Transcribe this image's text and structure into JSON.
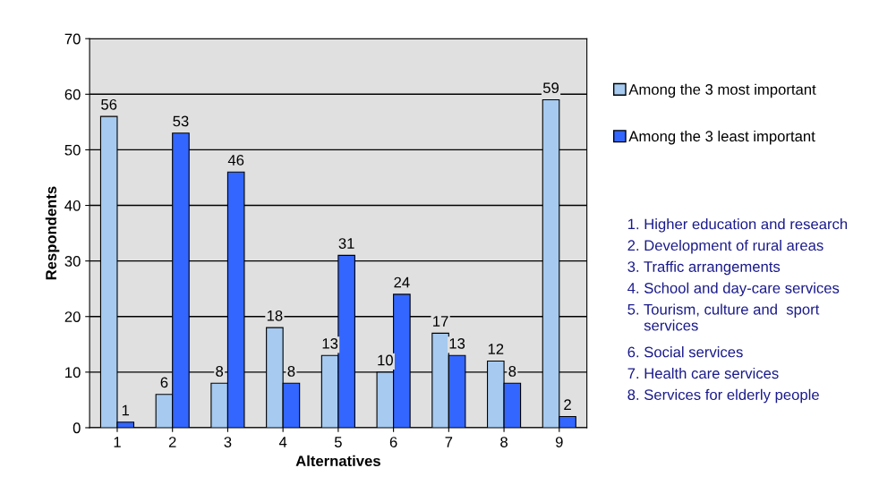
{
  "chart_data": {
    "type": "bar",
    "xlabel": "Alternatives",
    "ylabel": "Respondents",
    "categories": [
      "1",
      "2",
      "3",
      "4",
      "5",
      "6",
      "7",
      "8",
      "9"
    ],
    "series": [
      {
        "name": "Among the 3 most important",
        "color": "#a6caf0",
        "values": [
          56,
          6,
          8,
          18,
          13,
          10,
          17,
          12,
          59
        ]
      },
      {
        "name": "Among the 3 least important",
        "color": "#3366ff",
        "values": [
          1,
          53,
          46,
          8,
          31,
          24,
          13,
          8,
          2
        ]
      }
    ],
    "ylim": [
      0,
      70
    ],
    "yticks": [
      0,
      10,
      20,
      30,
      40,
      50,
      60,
      70
    ],
    "grid": "y",
    "legend": "right",
    "data_labels": true,
    "annotations": [
      "1. Higher education and research",
      "2. Development of rural areas",
      "3. Traffic arrangements",
      "4. School and day-care services",
      "5. Tourism, culture and  sport\n    services",
      "6. Social services",
      "7. Health care services",
      "8. Services for elderly people"
    ]
  }
}
